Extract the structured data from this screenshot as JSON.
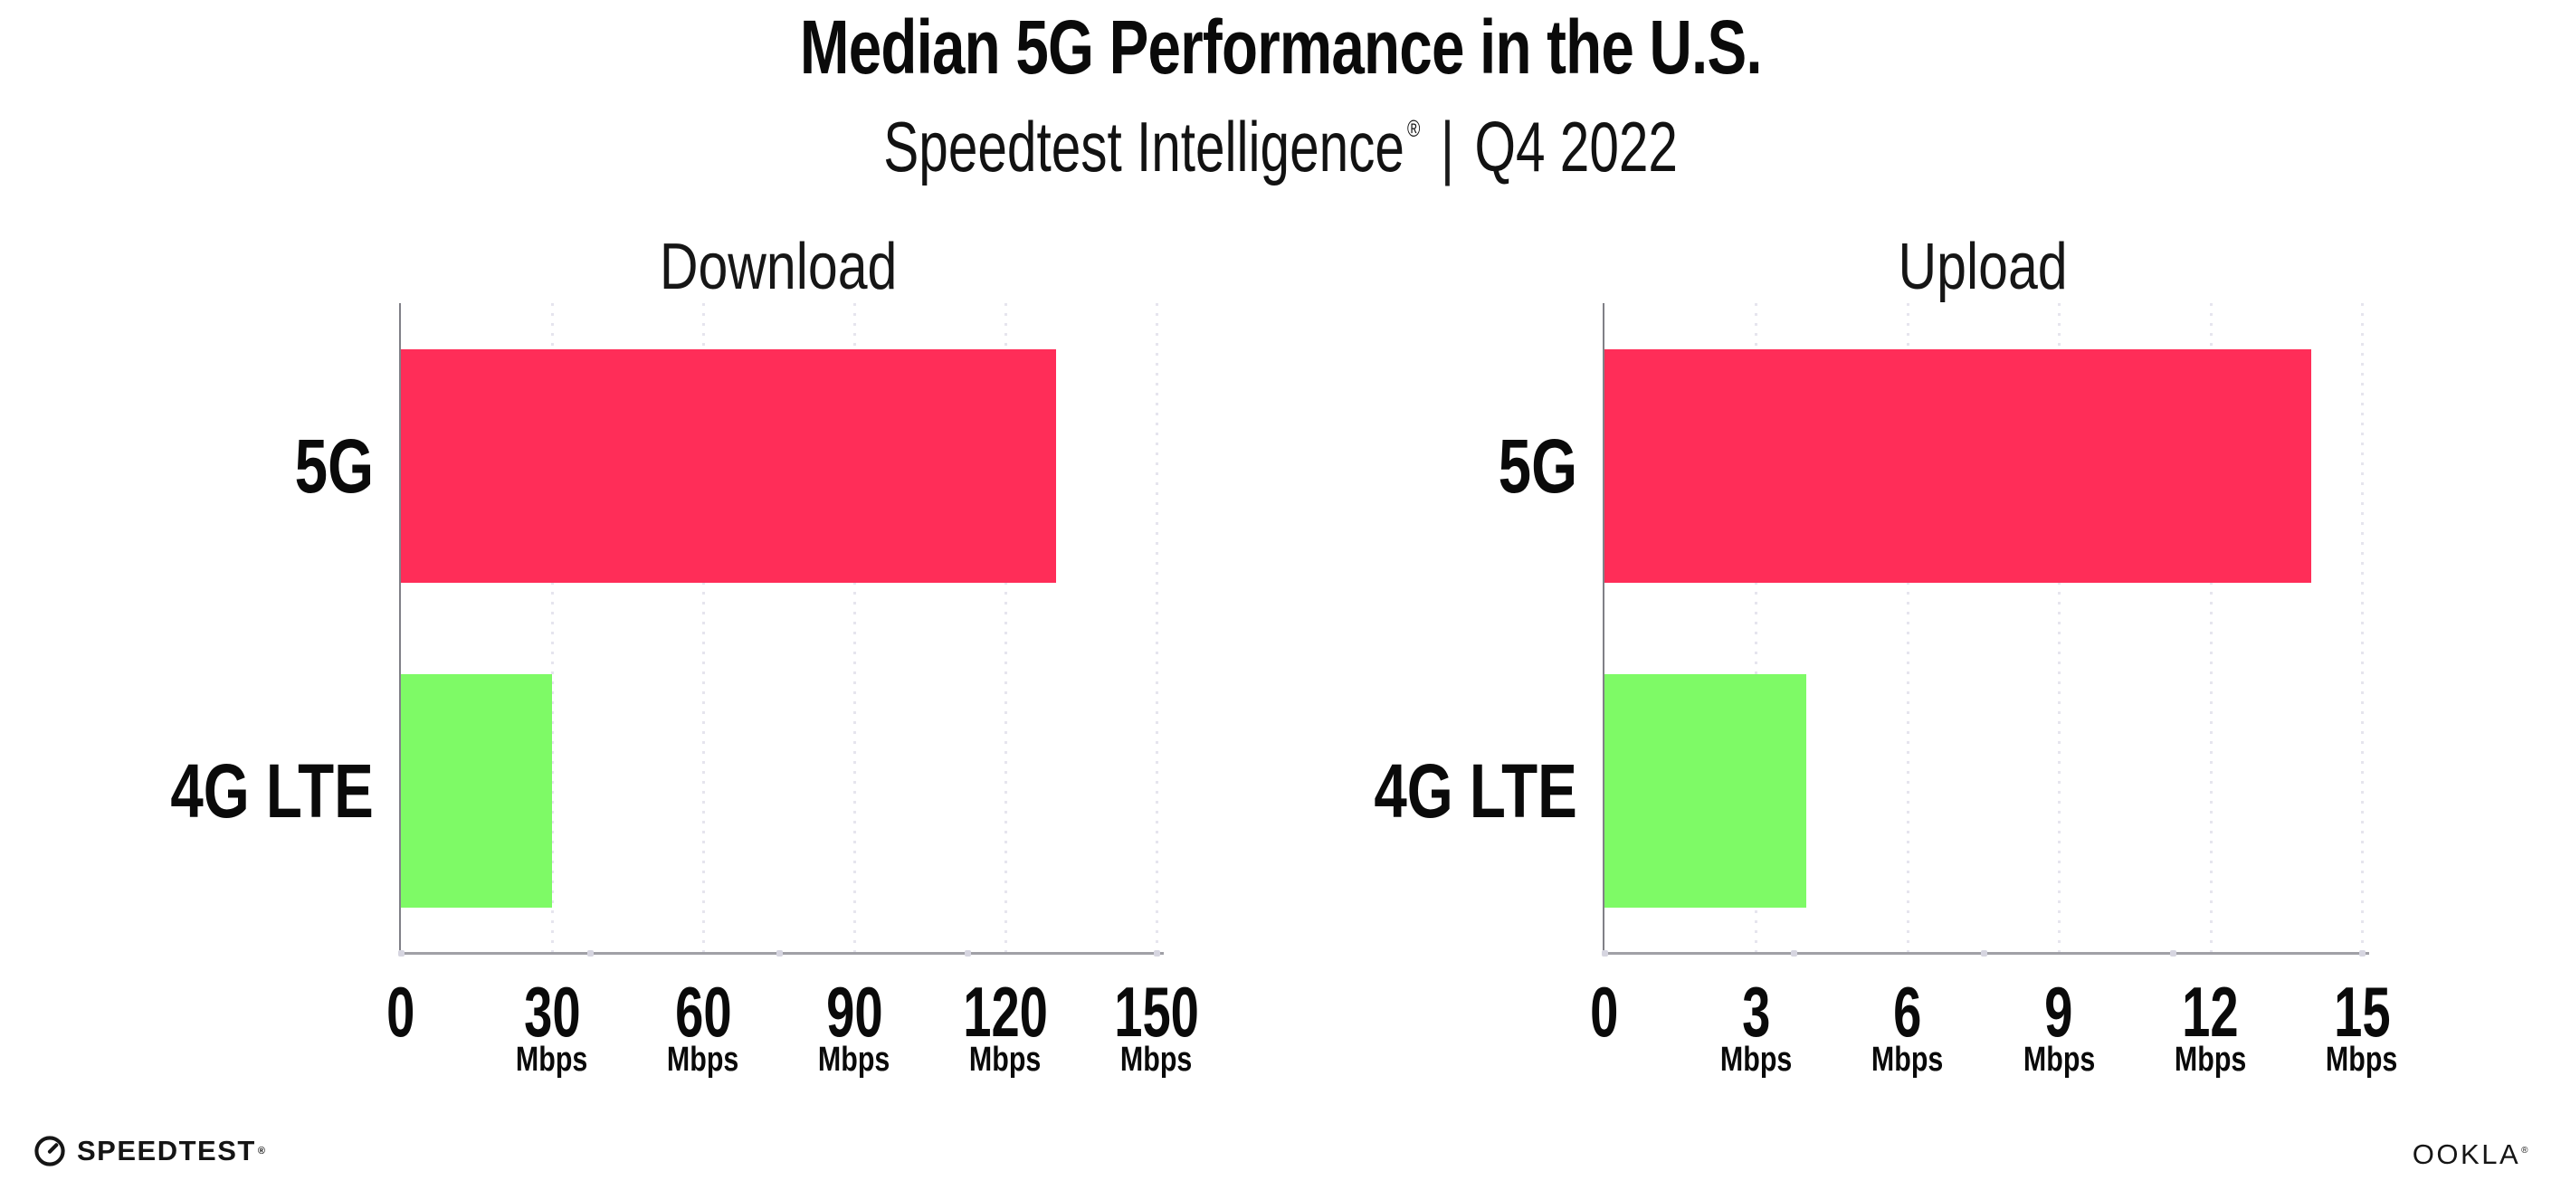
{
  "header": {
    "title": "Median 5G Performance in the U.S.",
    "subtitle_brand": "Speedtest Intelligence",
    "subtitle_registered": "®",
    "subtitle_separator": "|",
    "subtitle_period": "Q4 2022"
  },
  "colors": {
    "bar_5g": "#FF2D58",
    "bar_4g_lte": "#7EFA66",
    "axis_line": "#a0a0a6",
    "y_spine": "#808087",
    "gridline": "#e6e5ee",
    "text": "#0d0d0d"
  },
  "chart_data": [
    {
      "type": "bar",
      "orientation": "horizontal",
      "title": "Download",
      "categories": [
        "5G",
        "4G LTE"
      ],
      "values": [
        130,
        30
      ],
      "bar_colors": [
        "#FF2D58",
        "#7EFA66"
      ],
      "unit": "Mbps",
      "xlim": [
        0,
        150
      ],
      "ticks": [
        0,
        30,
        60,
        90,
        120,
        150
      ],
      "grid": "dotted-vertical",
      "legend": "none"
    },
    {
      "type": "bar",
      "orientation": "horizontal",
      "title": "Upload",
      "categories": [
        "5G",
        "4G LTE"
      ],
      "values": [
        14,
        4
      ],
      "bar_colors": [
        "#FF2D58",
        "#7EFA66"
      ],
      "unit": "Mbps",
      "xlim": [
        0,
        15
      ],
      "ticks": [
        0,
        3,
        6,
        9,
        12,
        15
      ],
      "grid": "dotted-vertical",
      "legend": "none"
    }
  ],
  "footer": {
    "speedtest_label": "SPEEDTEST",
    "speedtest_mark": "®",
    "ookla_label": "OOKLA",
    "ookla_mark": "®"
  }
}
